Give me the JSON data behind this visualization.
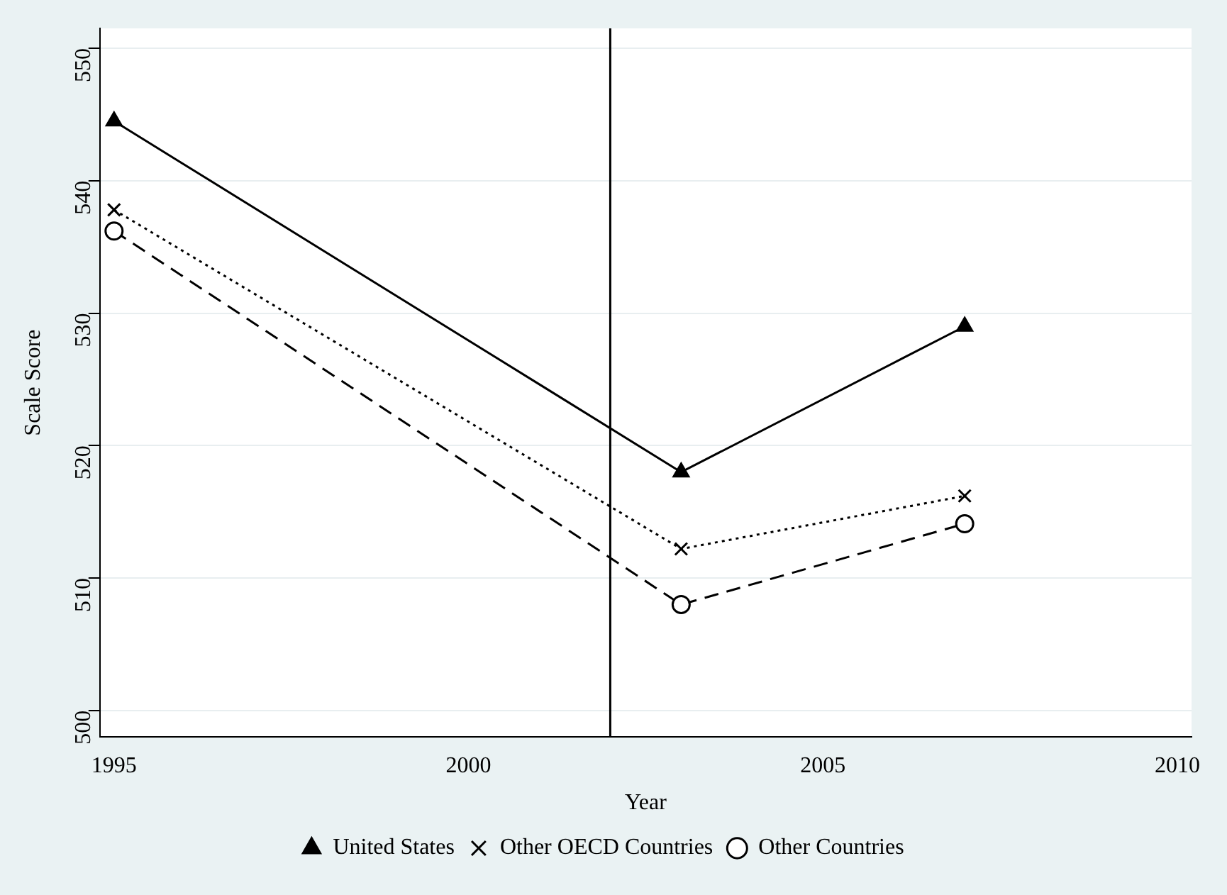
{
  "chart_data": {
    "type": "line",
    "xlabel": "Year",
    "ylabel": "Scale Score",
    "x": [
      1995,
      2003,
      2007
    ],
    "series": [
      {
        "name": "United States",
        "color": "#000000",
        "values": [
          544.5,
          518,
          529
        ],
        "marker": "triangle",
        "line_style": "solid"
      },
      {
        "name": "Other OECD Countries",
        "color": "#000000",
        "values": [
          537.8,
          512.2,
          516.2
        ],
        "marker": "cross",
        "line_style": "dotted"
      },
      {
        "name": "Other Countries",
        "color": "#000000",
        "values": [
          536.2,
          508,
          514.1
        ],
        "marker": "circle",
        "line_style": "dashed"
      }
    ],
    "xlim": [
      1994.8,
      2010.2
    ],
    "xticks": [
      1995,
      2000,
      2005,
      2010
    ],
    "ylim": [
      498,
      551.5
    ],
    "yticks": [
      500,
      510,
      520,
      530,
      540,
      550
    ],
    "ref_lines": [
      {
        "axis": "x",
        "value": 2002,
        "color": "#000000"
      }
    ],
    "grid": "y",
    "legend": "bottom"
  }
}
